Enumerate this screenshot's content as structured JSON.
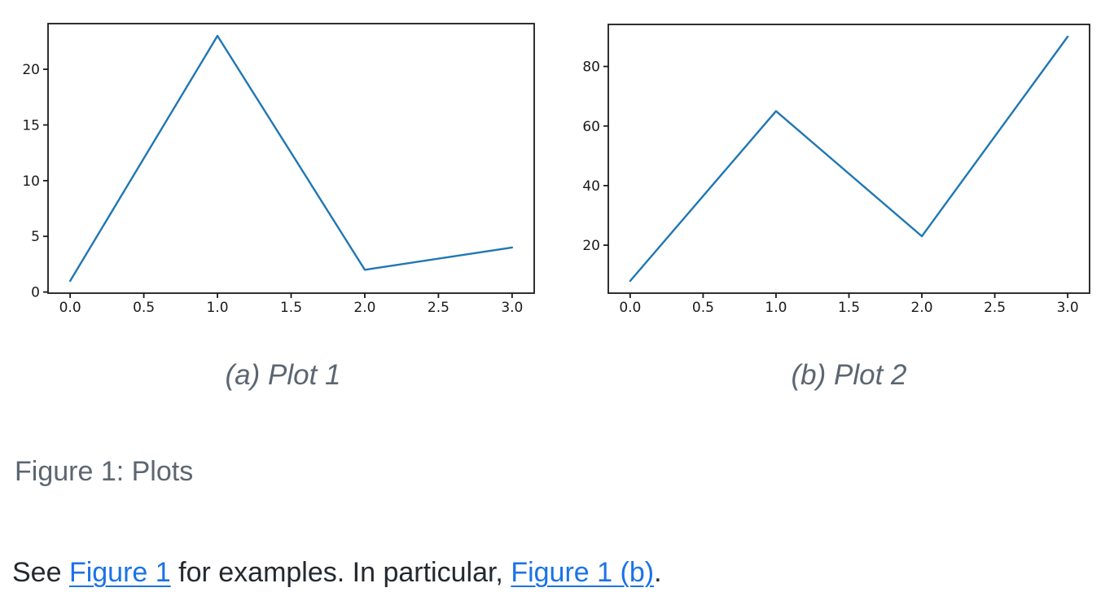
{
  "page": {
    "background": "#ffffff"
  },
  "figure": {
    "caption": "Figure 1: Plots"
  },
  "paragraph": {
    "segments": [
      {
        "type": "text",
        "text": "See "
      },
      {
        "type": "link",
        "name": "link-figure-1",
        "text": "Figure 1"
      },
      {
        "type": "text",
        "text": " for examples. In particular, "
      },
      {
        "type": "link",
        "name": "link-figure-1-b",
        "text": "Figure 1 (b)"
      },
      {
        "type": "text",
        "text": "."
      }
    ]
  },
  "colors": {
    "line": "#1f77b4",
    "axis": "#1a1a1a",
    "tick_label": "#1a1a1a",
    "caption_gray": "#5b6671",
    "body_text": "#24292e",
    "link_blue": "#1a73e8"
  },
  "chart_data": [
    {
      "type": "line",
      "name": "plot-1",
      "caption": "(a) Plot 1",
      "x": [
        0,
        1,
        2,
        3
      ],
      "y": [
        1,
        23,
        2,
        4
      ],
      "xlim": [
        -0.15,
        3.15
      ],
      "ylim": [
        -0.1,
        24.1
      ],
      "xticks": [
        0.0,
        0.5,
        1.0,
        1.5,
        2.0,
        2.5,
        3.0
      ],
      "xtick_labels": [
        "0.0",
        "0.5",
        "1.0",
        "1.5",
        "2.0",
        "2.5",
        "3.0"
      ],
      "yticks": [
        0,
        5,
        10,
        15,
        20
      ],
      "ytick_labels": [
        "0",
        "5",
        "10",
        "15",
        "20"
      ],
      "grid": false,
      "legend": null,
      "title": "",
      "xlabel": "",
      "ylabel": "",
      "line_color": "#1f77b4"
    },
    {
      "type": "line",
      "name": "plot-2",
      "caption": "(b) Plot 2",
      "x": [
        0,
        1,
        2,
        3
      ],
      "y": [
        8,
        65,
        23,
        90
      ],
      "xlim": [
        -0.15,
        3.15
      ],
      "ylim": [
        3.9,
        94.1
      ],
      "xticks": [
        0.0,
        0.5,
        1.0,
        1.5,
        2.0,
        2.5,
        3.0
      ],
      "xtick_labels": [
        "0.0",
        "0.5",
        "1.0",
        "1.5",
        "2.0",
        "2.5",
        "3.0"
      ],
      "yticks": [
        20,
        40,
        60,
        80
      ],
      "ytick_labels": [
        "20",
        "40",
        "60",
        "80"
      ],
      "grid": false,
      "legend": null,
      "title": "",
      "xlabel": "",
      "ylabel": "",
      "line_color": "#1f77b4"
    }
  ]
}
